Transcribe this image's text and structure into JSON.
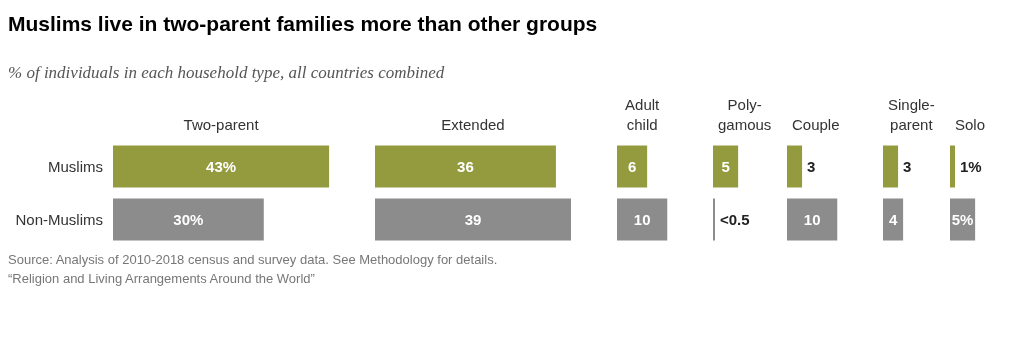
{
  "chart_data": [
    {
      "type": "other",
      "title": "Muslims live in two-parent families more than other groups",
      "subtitle": "% of individuals in each household type, all countries combined",
      "annotations": [
        "Source: Analysis of 2010-2018 census and survey data. See Methodology for details.",
        "“Religion and Living Arrangements Around the World”"
      ]
    },
    {
      "type": "bar",
      "orientation": "horizontal",
      "title": "Two-parent",
      "categories": [
        "Muslims",
        "Non-Muslims"
      ],
      "values": [
        43,
        30
      ],
      "value_labels": [
        "43%",
        "30%"
      ],
      "colors": [
        "#949b3f",
        "#8c8c8c"
      ],
      "tick_labels": "y"
    },
    {
      "type": "bar",
      "orientation": "horizontal",
      "title": "Extended",
      "values": [
        36,
        39
      ],
      "value_labels": [
        "36",
        "39"
      ],
      "colors": [
        "#949b3f",
        "#8c8c8c"
      ],
      "tick_labels": false
    },
    {
      "type": "bar",
      "orientation": "horizontal",
      "title": "Adult\nchild",
      "values": [
        6,
        10
      ],
      "value_labels": [
        "6",
        "10"
      ],
      "colors": [
        "#949b3f",
        "#8c8c8c"
      ],
      "tick_labels": false
    },
    {
      "type": "bar",
      "orientation": "horizontal",
      "title": "Poly-\ngamous",
      "values": [
        5,
        0.4
      ],
      "value_labels": [
        "5",
        "<0.5"
      ],
      "colors": [
        "#949b3f",
        "#8c8c8c"
      ],
      "tick_labels": false
    },
    {
      "type": "bar",
      "orientation": "horizontal",
      "title": "Couple",
      "values": [
        3,
        10
      ],
      "value_labels": [
        "3",
        "10"
      ],
      "colors": [
        "#949b3f",
        "#8c8c8c"
      ],
      "tick_labels": false
    },
    {
      "type": "bar",
      "orientation": "horizontal",
      "title": "Single-\nparent",
      "values": [
        3,
        4
      ],
      "value_labels": [
        "3",
        "4"
      ],
      "colors": [
        "#949b3f",
        "#8c8c8c"
      ],
      "tick_labels": false
    },
    {
      "type": "bar",
      "orientation": "horizontal",
      "title": "Solo",
      "values": [
        1,
        5
      ],
      "value_labels": [
        "1%",
        "5%"
      ],
      "colors": [
        "#949b3f",
        "#8c8c8c"
      ],
      "tick_labels": false
    }
  ]
}
